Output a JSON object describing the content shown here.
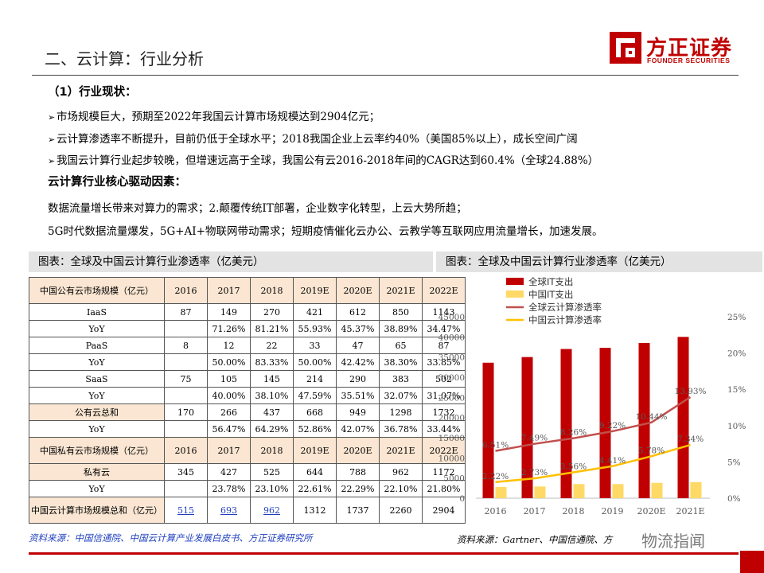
{
  "header": {
    "title": "二、云计算：行业分析",
    "logo_cn": "方正证券",
    "logo_en": "FOUNDER SECURITIES"
  },
  "content": {
    "section_heading": "（1）行业现状：",
    "bullets": [
      "市场规模巨大，预期至2022年我国云计算市场规模达到2904亿元；",
      "云计算渗透率不断提升，目前仍低于全球水平；2018我国企业上云率约40%（美国85%以上），成长空间广阔",
      "我国云计算行业起步较晚，但增速远高于全球，我国公有云2016-2018年间的CAGR达到60.4%（全球24.88%）"
    ],
    "drivers_heading": "云计算行业核心驱动因素：",
    "drivers_lines": [
      "数据流量增长带来对算力的需求；2.颠覆传统IT部署，企业数字化转型，上云大势所趋；",
      "5G时代数据流量爆发，5G+AI+物联网带动需求；短期疫情催化云办公、云教学等互联网应用流量增长，加速发展。"
    ]
  },
  "captions": {
    "left": "图表：全球及中国云计算行业渗透率（亿美元）",
    "right": "图表：全球及中国云计算行业渗透率（亿美元）"
  },
  "table": {
    "years": [
      "2016",
      "2017",
      "2018",
      "2019E",
      "2020E",
      "2021E",
      "2022E"
    ],
    "public_header": "中国公有云市场规模（亿元）",
    "public_rows": [
      {
        "label": "IaaS",
        "values": [
          "87",
          "149",
          "270",
          "421",
          "612",
          "850",
          "1143"
        ]
      },
      {
        "label": "YoY",
        "values": [
          "",
          "71.26%",
          "81.21%",
          "55.93%",
          "45.37%",
          "38.89%",
          "34.47%"
        ]
      },
      {
        "label": "PaaS",
        "values": [
          "8",
          "12",
          "22",
          "33",
          "47",
          "65",
          "87"
        ]
      },
      {
        "label": "YoY",
        "values": [
          "",
          "50.00%",
          "83.33%",
          "50.00%",
          "42.42%",
          "38.30%",
          "33.85%"
        ]
      },
      {
        "label": "SaaS",
        "values": [
          "75",
          "105",
          "145",
          "214",
          "290",
          "383",
          "502"
        ]
      },
      {
        "label": "YoY",
        "values": [
          "",
          "40.00%",
          "38.10%",
          "47.59%",
          "35.51%",
          "32.07%",
          "31.07%"
        ]
      },
      {
        "label": "公有云总和",
        "values": [
          "170",
          "266",
          "437",
          "668",
          "949",
          "1298",
          "1732"
        ]
      },
      {
        "label": "YoY",
        "values": [
          "",
          "56.47%",
          "64.29%",
          "52.86%",
          "42.07%",
          "36.78%",
          "33.44%"
        ]
      }
    ],
    "private_header": "中国私有云市场规模（亿元）",
    "private_rows": [
      {
        "label": "私有云",
        "values": [
          "345",
          "427",
          "525",
          "644",
          "788",
          "962",
          "1172"
        ]
      },
      {
        "label": "YoY",
        "values": [
          "",
          "23.78%",
          "23.10%",
          "22.61%",
          "22.29%",
          "22.10%",
          "21.80%"
        ]
      }
    ],
    "total_label": "中国云计算市场规模总和（亿元）",
    "total_values": [
      "515",
      "693",
      "962",
      "1312",
      "1737",
      "2260",
      "2904"
    ]
  },
  "sources": {
    "left": "资料来源：中国信通院、中国云计算产业发展白皮书、方正证券研究所",
    "right": "资料来源：Gartner、中国信通院、方",
    "watermark": "物流指闻"
  },
  "colors": {
    "brand_red": "#c00000",
    "bar_yellow": "#ffd966",
    "line_red": "#c0504d",
    "line_yellow": "#ffc000"
  },
  "chart_data": {
    "type": "bar",
    "categories": [
      "2016",
      "2017",
      "2018",
      "2019",
      "2020E",
      "2021E"
    ],
    "series": [
      {
        "name": "全球IT支出",
        "kind": "bar",
        "axis": "left",
        "values": [
          33600,
          35000,
          37000,
          37300,
          38500,
          40000
        ]
      },
      {
        "name": "中国IT支出",
        "kind": "bar",
        "axis": "left",
        "values": [
          2800,
          2900,
          3500,
          3500,
          3800,
          4000
        ]
      },
      {
        "name": "全球云计算渗透率",
        "kind": "line",
        "axis": "right",
        "values": [
          6.51,
          7.49,
          8.26,
          9.22,
          10.44,
          13.93
        ],
        "labels": [
          "6.51%",
          "7.49%",
          "8.26%",
          "9.22%",
          "10.44%",
          "13.93%"
        ]
      },
      {
        "name": "中国云计算渗透率",
        "kind": "line",
        "axis": "right",
        "values": [
          2.22,
          2.73,
          3.56,
          4.41,
          5.78,
          7.34
        ],
        "labels": [
          "2.22%",
          "2.73%",
          "3.56%",
          "4.41%",
          "5.78%",
          "7.34%"
        ]
      }
    ],
    "y_left": {
      "min": 0,
      "max": 45000,
      "ticks": [
        "0",
        "5000",
        "10000",
        "15000",
        "20000",
        "25000",
        "30000",
        "35000",
        "40000",
        "45000"
      ]
    },
    "y_right": {
      "min": 0,
      "max": 25,
      "ticks": [
        "0%",
        "5%",
        "10%",
        "15%",
        "20%",
        "25%"
      ]
    },
    "legend_position": "top"
  }
}
